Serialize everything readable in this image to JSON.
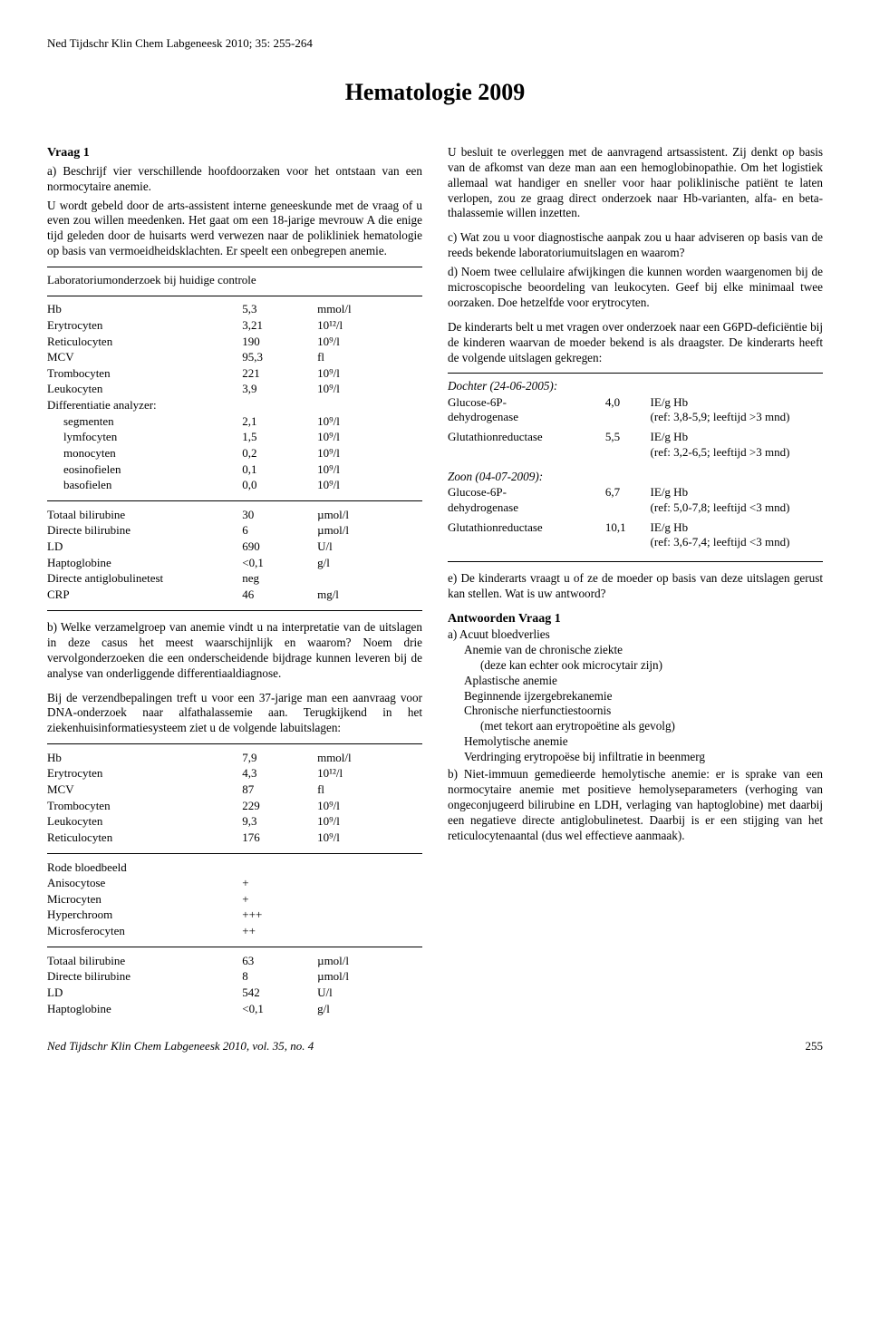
{
  "header": "Ned Tijdschr Klin Chem Labgeneesk 2010; 35: 255-264",
  "title": "Hematologie 2009",
  "left": {
    "q1_head": "Vraag 1",
    "q1_a": "a) Beschrijf vier verschillende hoofdoorzaken voor het ontstaan van een normocytaire anemie.",
    "q1_body": "U wordt gebeld door de arts-assistent interne geneeskunde met de vraag of u even zou willen meedenken. Het gaat om een 18-jarige mevrouw A die enige tijd geleden door de huisarts werd verwezen naar de polikliniek hematologie op basis van vermoeidheidsklachten. Er speelt een onbegrepen anemie.",
    "lab1_title": "Laboratoriumonderzoek bij huidige controle",
    "lab1": [
      [
        "Hb",
        "5,3",
        "mmol/l"
      ],
      [
        "Erytrocyten",
        "3,21",
        "10¹²/l"
      ],
      [
        "Reticulocyten",
        "190",
        "10⁹/l"
      ],
      [
        "MCV",
        "95,3",
        "fl"
      ],
      [
        "Trombocyten",
        "221",
        "10⁹/l"
      ],
      [
        "Leukocyten",
        "3,9",
        "10⁹/l"
      ]
    ],
    "diff_head": "Differentiatie analyzer:",
    "diff": [
      [
        "segmenten",
        "2,1",
        "10⁹/l"
      ],
      [
        "lymfocyten",
        "1,5",
        "10⁹/l"
      ],
      [
        "monocyten",
        "0,2",
        "10⁹/l"
      ],
      [
        "eosinofielen",
        "0,1",
        "10⁹/l"
      ],
      [
        "basofielen",
        "0,0",
        "10⁹/l"
      ]
    ],
    "lab1b": [
      [
        "Totaal bilirubine",
        "30",
        "µmol/l"
      ],
      [
        "Directe bilirubine",
        "6",
        "µmol/l"
      ],
      [
        "LD",
        "690",
        "U/l"
      ],
      [
        "Haptoglobine",
        "<0,1",
        "g/l"
      ],
      [
        "Directe antiglobulinetest",
        "neg",
        ""
      ],
      [
        "CRP",
        "46",
        "mg/l"
      ]
    ],
    "q1_b": "b) Welke verzamelgroep van anemie vindt u na interpretatie van de uitslagen in deze casus het meest waarschijnlijk en waarom? Noem drie vervolgonderzoeken die een onderscheidende bijdrage kunnen leveren bij de analyse van onderliggende differentiaaldiagnose.",
    "q1_mid": "Bij de verzendbepalingen treft u voor een 37-jarige man een aanvraag voor DNA-onderzoek naar alfathalassemie aan. Terugkijkend in het ziekenhuisinformatiesysteem ziet u de volgende labuitslagen:",
    "lab2": [
      [
        "Hb",
        "7,9",
        "mmol/l"
      ],
      [
        "Erytrocyten",
        "4,3",
        "10¹²/l"
      ],
      [
        "MCV",
        "87",
        "fl"
      ],
      [
        "Trombocyten",
        "229",
        "10⁹/l"
      ],
      [
        "Leukocyten",
        "9,3",
        "10⁹/l"
      ],
      [
        "Reticulocyten",
        "176",
        "10⁹/l"
      ]
    ],
    "blood_head": "Rode bloedbeeld",
    "blood": [
      [
        "Anisocytose",
        "+",
        ""
      ],
      [
        "Microcyten",
        "+",
        ""
      ],
      [
        "Hyperchroom",
        "+++",
        ""
      ],
      [
        "Microsferocyten",
        "++",
        ""
      ]
    ],
    "lab2b": [
      [
        "Totaal bilirubine",
        "63",
        "µmol/l"
      ],
      [
        "Directe bilirubine",
        "8",
        "µmol/l"
      ],
      [
        "LD",
        "542",
        "U/l"
      ],
      [
        "Haptoglobine",
        "<0,1",
        "g/l"
      ]
    ]
  },
  "right": {
    "p1": "U besluit te overleggen met de aanvragend artsassistent. Zij denkt op basis van de afkomst van deze man aan een hemoglobinopathie. Om het logistiek allemaal wat handiger en sneller voor haar poliklinische patiënt te laten verlopen, zou ze graag direct onderzoek naar Hb-varianten, alfa- en beta-thalassemie willen inzetten.",
    "q_c": "c) Wat zou u voor diagnostische aanpak zou u haar adviseren op basis van de reeds bekende laboratoriumuitslagen en waarom?",
    "q_d": "d) Noem twee cellulaire afwijkingen die kunnen worden waargenomen bij de microscopische beoordeling van leukocyten. Geef bij elke minimaal twee oorzaken. Doe hetzelfde voor erytrocyten.",
    "p2": "De kinderarts belt u met vragen over onderzoek naar een G6PD-deficiëntie bij de kinderen waarvan de moeder bekend is als draagster. De kinderarts heeft de volgende uitslagen gekregen:",
    "dochter_head": "Dochter (24-06-2005):",
    "dochter": [
      [
        "Glucose-6P-dehydrogenase",
        "4,0",
        "IE/g Hb",
        "(ref: 3,8-5,9; leeftijd >3 mnd)"
      ],
      [
        "Glutathionreductase",
        "5,5",
        "IE/g Hb",
        "(ref: 3,2-6,5; leeftijd >3 mnd)"
      ]
    ],
    "zoon_head": "Zoon (04-07-2009):",
    "zoon": [
      [
        "Glucose-6P-dehydrogenase",
        "6,7",
        "IE/g Hb",
        "(ref: 5,0-7,8; leeftijd <3 mnd)"
      ],
      [
        "Glutathionreductase",
        "10,1",
        "IE/g Hb",
        "(ref: 3,6-7,4; leeftijd <3 mnd)"
      ]
    ],
    "q_e": "e) De kinderarts vraagt u of ze de moeder op basis van deze uitslagen gerust kan stellen. Wat is uw antwoord?",
    "ans_head": "Antwoorden Vraag 1",
    "ans_a_head": "a) Acuut bloedverlies",
    "ans_a": [
      "Anemie van de chronische ziekte",
      "(deze kan echter ook microcytair zijn)",
      "Aplastische anemie",
      "Beginnende ijzergebrekanemie",
      "Chronische nierfunctiestoornis",
      "(met tekort aan erytropoëtine als gevolg)",
      "Hemolytische anemie",
      "Verdringing erytropoëse bij infiltratie in beenmerg"
    ],
    "ans_b": "b) Niet-immuun gemedieerde hemolytische anemie: er is sprake van een normocytaire anemie met positieve hemolyseparameters (verhoging van ongeconjugeerd bilirubine en LDH, verlaging van haptoglobine) met daarbij een negatieve directe antiglobulinetest. Daarbij is er een stijging van het reticulocytenaantal (dus wel effectieve aanmaak)."
  },
  "footer": {
    "journal": "Ned Tijdschr Klin Chem Labgeneesk 2010, vol. 35, no. 4",
    "page": "255"
  }
}
